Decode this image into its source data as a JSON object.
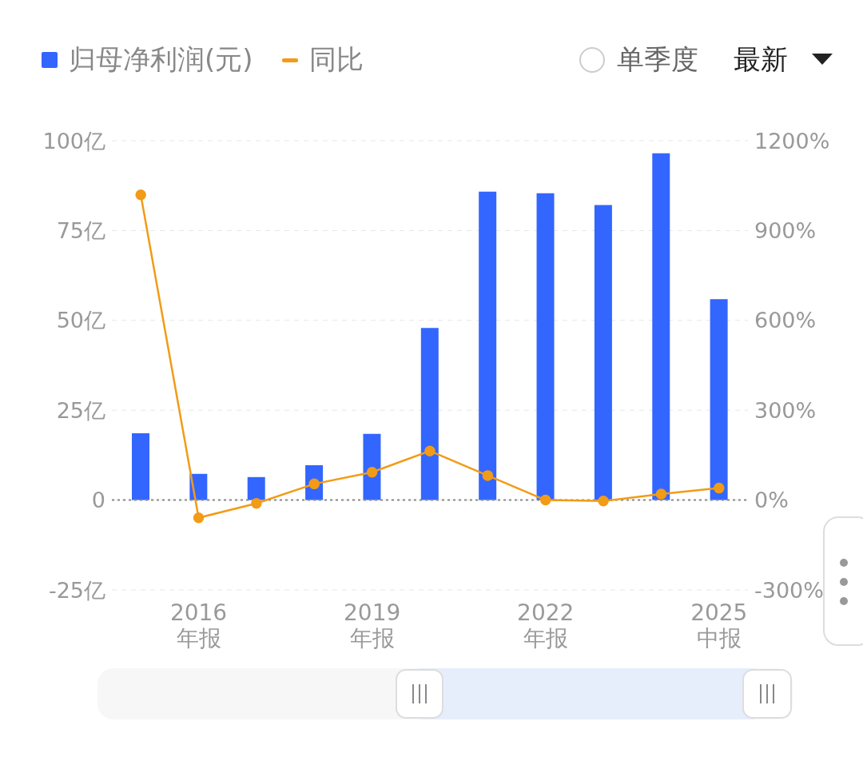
{
  "chart_data": {
    "type": "bar",
    "categories": [
      null,
      "2016 年报",
      null,
      null,
      "2019 年报",
      null,
      null,
      "2022 年报",
      null,
      null,
      "2025 中报"
    ],
    "series": [
      {
        "name": "归母净利润(元)",
        "color": "#3366ff",
        "values": [
          18.6,
          7.3,
          6.4,
          9.7,
          18.4,
          47.9,
          85.8,
          85.4,
          82.1,
          96.5,
          55.9
        ]
      },
      {
        "name": "同比",
        "type": "line",
        "axis": "y2",
        "color": "#f29b17",
        "marker": "circle",
        "values": [
          1019,
          -59,
          -11,
          54,
          93,
          164,
          82,
          0,
          -3,
          20,
          40
        ]
      }
    ],
    "ylim": [
      -25,
      100
    ],
    "yticks": [
      {
        "value": -25,
        "label": "-25亿"
      },
      {
        "value": 0,
        "label": "0"
      },
      {
        "value": 25,
        "label": "25亿"
      },
      {
        "value": 50,
        "label": "50亿"
      },
      {
        "value": 75,
        "label": "75亿"
      },
      {
        "value": 100,
        "label": "100亿"
      }
    ],
    "y2lim": [
      -300,
      1200
    ],
    "y2ticks": [
      {
        "value": -300,
        "label": "-300%"
      },
      {
        "value": 0,
        "label": "0%"
      },
      {
        "value": 300,
        "label": "300%"
      },
      {
        "value": 600,
        "label": "600%"
      },
      {
        "value": 900,
        "label": "900%"
      },
      {
        "value": 1200,
        "label": "1200%"
      }
    ],
    "grid": "y",
    "legend": "top left",
    "ref_lines": [
      {
        "axis": "y",
        "value": 0,
        "color": "#888888",
        "line_style": "dotted"
      }
    ],
    "annotations": [
      "单季度",
      "最新"
    ]
  }
}
